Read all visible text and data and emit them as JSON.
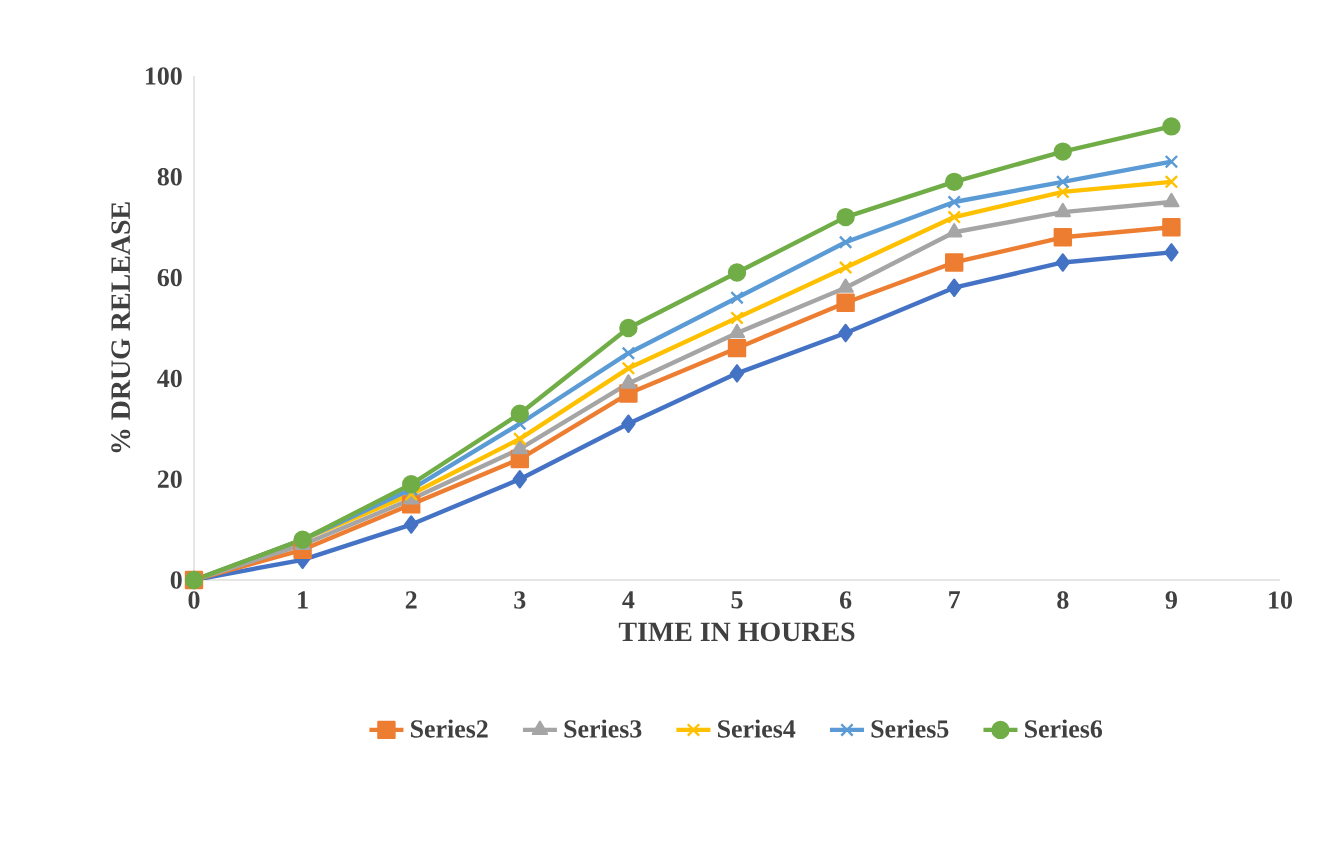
{
  "chart_data": {
    "type": "line",
    "xlabel": "TIME IN HOURES",
    "ylabel": "% DRUG RELEASE",
    "x": [
      0,
      1,
      2,
      3,
      4,
      5,
      6,
      7,
      8,
      9
    ],
    "xlim": [
      0,
      10
    ],
    "xticks": [
      0,
      1,
      2,
      3,
      4,
      5,
      6,
      7,
      8,
      9,
      10
    ],
    "ylim": [
      0,
      100
    ],
    "yticks": [
      0,
      20,
      40,
      60,
      80,
      100
    ],
    "legend": "bottom",
    "grid": false,
    "line_style": "solid",
    "series": [
      {
        "color": "#4472c4",
        "marker": "diamond",
        "values": [
          0,
          4,
          11,
          20,
          31,
          41,
          49,
          58,
          63,
          65
        ]
      },
      {
        "name": "Series2",
        "color": "#ed7d31",
        "marker": "square",
        "values": [
          0,
          6,
          15,
          24,
          37,
          46,
          55,
          63,
          68,
          70
        ]
      },
      {
        "name": "Series3",
        "color": "#a5a5a5",
        "marker": "triangle",
        "values": [
          0,
          7,
          16,
          26,
          39,
          49,
          58,
          69,
          73,
          75
        ]
      },
      {
        "name": "Series4",
        "color": "#ffc000",
        "marker": "cross",
        "values": [
          0,
          8,
          17,
          28,
          42,
          52,
          62,
          72,
          77,
          79
        ]
      },
      {
        "name": "Series5",
        "color": "#5b9bd5",
        "marker": "cross",
        "values": [
          0,
          8,
          18,
          31,
          45,
          56,
          67,
          75,
          79,
          83
        ]
      },
      {
        "name": "Series6",
        "color": "#70ad47",
        "marker": "circle",
        "values": [
          0,
          8,
          19,
          33,
          50,
          61,
          72,
          79,
          85,
          90
        ]
      }
    ]
  }
}
